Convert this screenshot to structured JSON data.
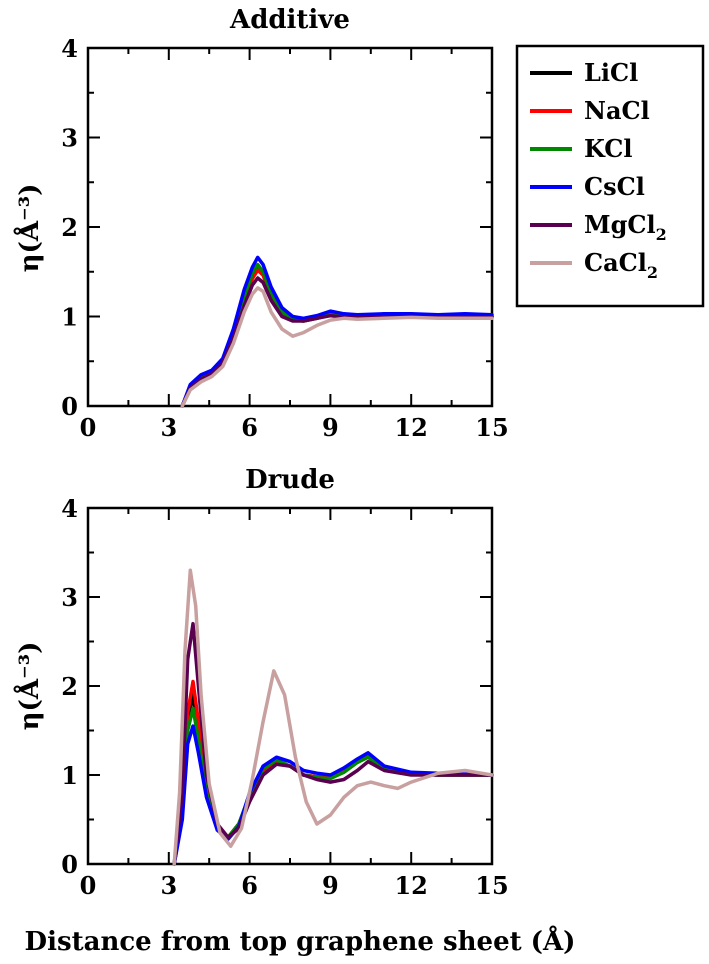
{
  "xlabel": "Distance from top graphene sheet (Å)",
  "chart_data": [
    {
      "type": "line",
      "title": "Additive",
      "ylabel": "η(Å⁻³)",
      "xlim": [
        0,
        15
      ],
      "ylim": [
        0,
        4
      ],
      "xticks": [
        0,
        3,
        6,
        9,
        12,
        15
      ],
      "yticks": [
        0,
        1,
        2,
        3,
        4
      ],
      "series": [
        {
          "name": "LiCl",
          "color": "#000000",
          "x": [
            3.5,
            3.8,
            4.2,
            4.6,
            5.0,
            5.4,
            5.8,
            6.1,
            6.3,
            6.5,
            6.8,
            7.2,
            7.6,
            8.0,
            8.5,
            9.0,
            9.5,
            10,
            11,
            12,
            13,
            14,
            15
          ],
          "y": [
            0.0,
            0.22,
            0.32,
            0.38,
            0.5,
            0.8,
            1.2,
            1.45,
            1.55,
            1.48,
            1.25,
            1.05,
            0.97,
            0.96,
            0.99,
            1.03,
            1.0,
            1.0,
            1.0,
            1.01,
            1.0,
            1.0,
            1.0
          ]
        },
        {
          "name": "NaCl",
          "color": "#ff0000",
          "x": [
            3.5,
            3.8,
            4.2,
            4.6,
            5.0,
            5.4,
            5.8,
            6.1,
            6.3,
            6.5,
            6.8,
            7.2,
            7.6,
            8.0,
            8.5,
            9.0,
            9.5,
            10,
            11,
            12,
            13,
            14,
            15
          ],
          "y": [
            0.0,
            0.21,
            0.31,
            0.37,
            0.49,
            0.78,
            1.18,
            1.42,
            1.52,
            1.46,
            1.22,
            1.03,
            0.96,
            0.95,
            0.98,
            1.02,
            1.0,
            1.0,
            1.0,
            1.02,
            1.01,
            1.0,
            1.0
          ]
        },
        {
          "name": "KCl",
          "color": "#008800",
          "x": [
            3.5,
            3.8,
            4.2,
            4.6,
            5.0,
            5.4,
            5.8,
            6.1,
            6.3,
            6.5,
            6.8,
            7.2,
            7.6,
            8.0,
            8.5,
            9.0,
            9.5,
            10,
            11,
            12,
            13,
            14,
            15
          ],
          "y": [
            0.0,
            0.22,
            0.33,
            0.39,
            0.51,
            0.82,
            1.22,
            1.48,
            1.58,
            1.5,
            1.26,
            1.05,
            0.97,
            0.95,
            0.98,
            1.02,
            0.99,
            0.98,
            0.99,
            1.0,
            0.99,
            1.0,
            1.0
          ]
        },
        {
          "name": "CsCl",
          "color": "#0000ff",
          "x": [
            3.5,
            3.8,
            4.2,
            4.6,
            5.0,
            5.4,
            5.8,
            6.1,
            6.3,
            6.5,
            6.8,
            7.2,
            7.6,
            8.0,
            8.5,
            9.0,
            9.5,
            10,
            11,
            12,
            13,
            14,
            15
          ],
          "y": [
            0.0,
            0.24,
            0.35,
            0.4,
            0.53,
            0.86,
            1.3,
            1.55,
            1.66,
            1.58,
            1.33,
            1.1,
            1.0,
            0.98,
            1.01,
            1.06,
            1.03,
            1.02,
            1.03,
            1.03,
            1.02,
            1.03,
            1.02
          ]
        },
        {
          "name": "MgCl2",
          "color": "#5a0050",
          "x": [
            3.5,
            3.8,
            4.2,
            4.6,
            5.0,
            5.4,
            5.8,
            6.1,
            6.3,
            6.5,
            6.8,
            7.2,
            7.6,
            8.0,
            8.5,
            9.0,
            9.5,
            10,
            11,
            12,
            13,
            14,
            15
          ],
          "y": [
            0.0,
            0.2,
            0.3,
            0.36,
            0.48,
            0.76,
            1.12,
            1.35,
            1.43,
            1.38,
            1.18,
            1.0,
            0.95,
            0.95,
            0.98,
            1.01,
            0.99,
            0.99,
            0.99,
            1.0,
            0.99,
            0.99,
            0.99
          ]
        },
        {
          "name": "CaCl2",
          "color": "#c8a0a0",
          "x": [
            3.5,
            3.8,
            4.2,
            4.6,
            5.0,
            5.4,
            5.8,
            6.1,
            6.3,
            6.5,
            6.8,
            7.2,
            7.6,
            8.0,
            8.5,
            9.0,
            9.5,
            10,
            11,
            12,
            13,
            14,
            15
          ],
          "y": [
            0.0,
            0.18,
            0.27,
            0.33,
            0.44,
            0.7,
            1.05,
            1.25,
            1.32,
            1.28,
            1.05,
            0.86,
            0.78,
            0.82,
            0.9,
            0.96,
            0.98,
            0.97,
            0.98,
            0.99,
            0.98,
            0.98,
            0.98
          ]
        }
      ]
    },
    {
      "type": "line",
      "title": "Drude",
      "ylabel": "η(Å⁻³)",
      "xlim": [
        0,
        15
      ],
      "ylim": [
        0,
        4
      ],
      "xticks": [
        0,
        3,
        6,
        9,
        12,
        15
      ],
      "yticks": [
        0,
        1,
        2,
        3,
        4
      ],
      "series": [
        {
          "name": "LiCl",
          "color": "#000000",
          "x": [
            3.2,
            3.5,
            3.7,
            3.9,
            4.1,
            4.4,
            4.8,
            5.2,
            5.6,
            6.0,
            6.5,
            7.0,
            7.5,
            8.0,
            8.5,
            9.0,
            9.5,
            10,
            10.4,
            11,
            12,
            13,
            14,
            15
          ],
          "y": [
            0.0,
            0.6,
            1.6,
            1.9,
            1.5,
            0.8,
            0.4,
            0.3,
            0.45,
            0.75,
            1.05,
            1.15,
            1.1,
            1.0,
            0.98,
            0.98,
            1.05,
            1.15,
            1.22,
            1.08,
            1.02,
            1.0,
            1.0,
            1.0
          ]
        },
        {
          "name": "NaCl",
          "color": "#ff0000",
          "x": [
            3.2,
            3.5,
            3.7,
            3.9,
            4.1,
            4.4,
            4.8,
            5.2,
            5.6,
            6.0,
            6.5,
            7.0,
            7.5,
            8.0,
            8.5,
            9.0,
            9.5,
            10,
            10.4,
            11,
            12,
            13,
            14,
            15
          ],
          "y": [
            0.0,
            0.6,
            1.7,
            2.05,
            1.6,
            0.85,
            0.42,
            0.3,
            0.45,
            0.75,
            1.05,
            1.15,
            1.1,
            1.0,
            0.98,
            0.98,
            1.05,
            1.15,
            1.22,
            1.08,
            1.02,
            1.0,
            1.0,
            1.0
          ]
        },
        {
          "name": "KCl",
          "color": "#008800",
          "x": [
            3.2,
            3.5,
            3.7,
            3.9,
            4.1,
            4.4,
            4.8,
            5.2,
            5.6,
            6.0,
            6.5,
            7.0,
            7.5,
            8.0,
            8.5,
            9.0,
            9.5,
            10,
            10.4,
            11,
            12,
            13,
            14,
            15
          ],
          "y": [
            0.0,
            0.55,
            1.5,
            1.75,
            1.4,
            0.8,
            0.4,
            0.3,
            0.45,
            0.78,
            1.07,
            1.17,
            1.1,
            1.0,
            0.97,
            0.96,
            1.03,
            1.14,
            1.2,
            1.06,
            1.01,
            1.0,
            1.0,
            1.0
          ]
        },
        {
          "name": "CsCl",
          "color": "#0000ff",
          "x": [
            3.2,
            3.5,
            3.7,
            3.9,
            4.1,
            4.4,
            4.8,
            5.2,
            5.6,
            6.0,
            6.5,
            7.0,
            7.5,
            8.0,
            8.5,
            9.0,
            9.5,
            10,
            10.4,
            11,
            12,
            13,
            14,
            15
          ],
          "y": [
            0.0,
            0.5,
            1.35,
            1.55,
            1.25,
            0.75,
            0.38,
            0.28,
            0.42,
            0.8,
            1.1,
            1.2,
            1.15,
            1.05,
            1.02,
            1.0,
            1.08,
            1.18,
            1.25,
            1.1,
            1.03,
            1.02,
            1.01,
            1.0
          ]
        },
        {
          "name": "MgCl2",
          "color": "#5a0050",
          "x": [
            3.2,
            3.5,
            3.7,
            3.9,
            4.1,
            4.4,
            4.8,
            5.2,
            5.6,
            6.0,
            6.5,
            7.0,
            7.5,
            8.0,
            8.5,
            9.0,
            9.5,
            10,
            10.4,
            11,
            12,
            13,
            14,
            15
          ],
          "y": [
            0.0,
            0.8,
            2.3,
            2.7,
            2.0,
            1.0,
            0.45,
            0.3,
            0.4,
            0.7,
            1.0,
            1.12,
            1.1,
            1.0,
            0.95,
            0.92,
            0.95,
            1.05,
            1.15,
            1.05,
            1.0,
            1.0,
            1.0,
            1.0
          ]
        },
        {
          "name": "CaCl2",
          "color": "#c8a0a0",
          "x": [
            3.2,
            3.4,
            3.6,
            3.8,
            4.0,
            4.2,
            4.5,
            4.9,
            5.3,
            5.7,
            6.1,
            6.5,
            6.9,
            7.3,
            7.7,
            8.1,
            8.5,
            9.0,
            9.5,
            10,
            10.5,
            11,
            11.5,
            12,
            13,
            14,
            15
          ],
          "y": [
            0.0,
            0.8,
            2.4,
            3.3,
            2.9,
            1.9,
            0.9,
            0.35,
            0.2,
            0.4,
            0.95,
            1.6,
            2.17,
            1.9,
            1.2,
            0.7,
            0.45,
            0.55,
            0.75,
            0.88,
            0.92,
            0.88,
            0.85,
            0.92,
            1.02,
            1.05,
            1.0
          ]
        }
      ]
    }
  ],
  "legend": {
    "items": [
      {
        "label": "LiCl",
        "color": "#000000",
        "sub": ""
      },
      {
        "label": "NaCl",
        "color": "#ff0000",
        "sub": ""
      },
      {
        "label": "KCl",
        "color": "#008800",
        "sub": ""
      },
      {
        "label": "CsCl",
        "color": "#0000ff",
        "sub": ""
      },
      {
        "label": "MgCl",
        "color": "#5a0050",
        "sub": "2"
      },
      {
        "label": "CaCl",
        "color": "#c8a0a0",
        "sub": "2"
      }
    ]
  }
}
